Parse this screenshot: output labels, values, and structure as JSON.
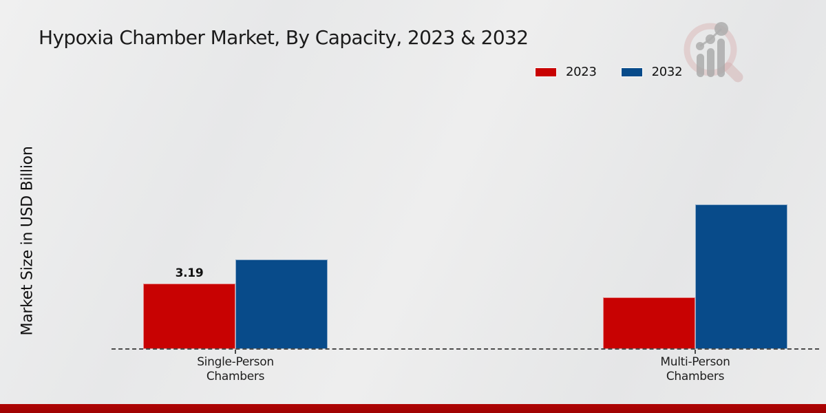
{
  "title": "Hypoxia Chamber Market, By Capacity, 2023 & 2032",
  "ylabel": "Market Size in USD Billion",
  "colors": {
    "series_2023": "#c80202",
    "series_2032": "#084b8a",
    "bottom_bar": "#b00404",
    "baseline": "#4a4a4a",
    "background": "#e9e9e9",
    "text": "#1b1b1b"
  },
  "branding": {
    "logo_icon": "magnifier-bar-chart-logo"
  },
  "chart_data": {
    "type": "bar",
    "title": "Hypoxia Chamber Market, By Capacity, 2023 & 2032",
    "xlabel": "",
    "ylabel": "Market Size in USD Billion",
    "categories": [
      "Single-Person Chambers",
      "Multi-Person Chambers"
    ],
    "categories_lines": [
      [
        "Single-Person",
        "Chambers"
      ],
      [
        "Multi-Person",
        "Chambers"
      ]
    ],
    "series": [
      {
        "name": "2023",
        "color": "#c80202",
        "values": [
          3.19,
          2.52
        ],
        "value_labels": [
          "3.19",
          ""
        ]
      },
      {
        "name": "2032",
        "color": "#084b8a",
        "values": [
          4.36,
          7.05
        ],
        "value_labels": [
          "",
          ""
        ]
      }
    ],
    "ylim": [
      0,
      7.5
    ],
    "grid": false,
    "legend_position": "top-right",
    "baseline_style": "dashed"
  }
}
